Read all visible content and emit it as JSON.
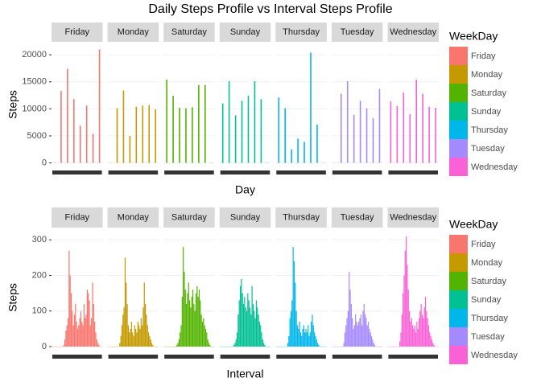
{
  "chart_data": [
    {
      "type": "bar",
      "title": "Daily Steps Profile vs Interval Steps Profile",
      "xlabel": "Day",
      "ylabel": "Steps",
      "legend_title": "WeekDay",
      "ylim": [
        -1100,
        22100
      ],
      "yticks": [
        0,
        5000,
        10000,
        15000,
        20000
      ],
      "grid": true,
      "series": [
        {
          "name": "Friday",
          "color": "#F8766D",
          "values": [
            0,
            13300,
            17400,
            11800,
            6900,
            10600,
            5400,
            21000
          ]
        },
        {
          "name": "Monday",
          "color": "#C49A00",
          "values": [
            0,
            10100,
            13400,
            5000,
            10400,
            10600,
            10700,
            9900
          ]
        },
        {
          "name": "Saturday",
          "color": "#53B400",
          "values": [
            15400,
            12400,
            10200,
            10100,
            10300,
            14400,
            14400,
            0
          ]
        },
        {
          "name": "Sunday",
          "color": "#00C094",
          "values": [
            11000,
            15100,
            8800,
            11500,
            12400,
            15100,
            11800,
            0
          ]
        },
        {
          "name": "Thursday",
          "color": "#00B6EB",
          "values": [
            12100,
            10100,
            2500,
            4500,
            3900,
            20400,
            7100,
            0
          ]
        },
        {
          "name": "Tuesday",
          "color": "#A58AFF",
          "values": [
            0,
            12800,
            15100,
            8900,
            11500,
            10100,
            8300,
            13700
          ]
        },
        {
          "name": "Wednesday",
          "color": "#FB61D7",
          "values": [
            11400,
            10500,
            13000,
            9000,
            15400,
            12800,
            10400,
            10200
          ]
        }
      ]
    },
    {
      "type": "bar",
      "xlabel": "Interval",
      "ylabel": "Steps",
      "legend_title": "WeekDay",
      "ylim": [
        -18,
        330
      ],
      "yticks": [
        0,
        100,
        200,
        300
      ],
      "grid": true,
      "series": [
        {
          "name": "Friday",
          "color": "#F8766D",
          "values": [
            0,
            0,
            0,
            0,
            0,
            0,
            0,
            0,
            0,
            0,
            0,
            5,
            20,
            45,
            60,
            80,
            270,
            200,
            150,
            100,
            60,
            90,
            120,
            70,
            50,
            60,
            80,
            100,
            70,
            60,
            120,
            80,
            90,
            160,
            150,
            130,
            60,
            80,
            180,
            120,
            70,
            40,
            20,
            10,
            5,
            0,
            0,
            0
          ]
        },
        {
          "name": "Monday",
          "color": "#C49A00",
          "values": [
            0,
            0,
            0,
            0,
            0,
            0,
            0,
            0,
            0,
            0,
            0,
            10,
            30,
            60,
            90,
            110,
            250,
            180,
            120,
            60,
            40,
            50,
            70,
            40,
            30,
            60,
            50,
            40,
            70,
            60,
            50,
            80,
            60,
            110,
            180,
            120,
            90,
            60,
            40,
            30,
            20,
            10,
            5,
            0,
            0,
            0,
            0,
            0
          ]
        },
        {
          "name": "Saturday",
          "color": "#53B400",
          "values": [
            0,
            0,
            0,
            0,
            0,
            0,
            0,
            0,
            0,
            0,
            0,
            0,
            5,
            10,
            20,
            40,
            60,
            140,
            280,
            210,
            160,
            120,
            150,
            180,
            130,
            110,
            140,
            160,
            120,
            100,
            150,
            170,
            140,
            160,
            130,
            90,
            70,
            80,
            60,
            50,
            40,
            20,
            10,
            5,
            0,
            0,
            0,
            0
          ]
        },
        {
          "name": "Sunday",
          "color": "#00C094",
          "values": [
            0,
            0,
            0,
            0,
            0,
            0,
            0,
            0,
            0,
            0,
            0,
            0,
            0,
            5,
            10,
            20,
            40,
            90,
            130,
            170,
            190,
            150,
            120,
            140,
            110,
            100,
            150,
            130,
            110,
            90,
            170,
            120,
            100,
            80,
            130,
            110,
            90,
            70,
            60,
            40,
            20,
            10,
            5,
            0,
            0,
            0,
            0,
            0
          ]
        },
        {
          "name": "Thursday",
          "color": "#00B6EB",
          "values": [
            0,
            0,
            0,
            0,
            0,
            0,
            0,
            0,
            0,
            0,
            0,
            10,
            30,
            80,
            100,
            130,
            280,
            240,
            180,
            100,
            60,
            50,
            70,
            40,
            30,
            50,
            60,
            40,
            50,
            40,
            60,
            30,
            40,
            70,
            90,
            60,
            40,
            30,
            20,
            10,
            5,
            0,
            0,
            0,
            0,
            0,
            0,
            0
          ]
        },
        {
          "name": "Tuesday",
          "color": "#A58AFF",
          "values": [
            0,
            0,
            0,
            0,
            0,
            0,
            0,
            0,
            0,
            0,
            0,
            10,
            40,
            60,
            80,
            100,
            210,
            160,
            120,
            80,
            50,
            60,
            90,
            70,
            60,
            70,
            80,
            90,
            60,
            100,
            120,
            90,
            80,
            60,
            70,
            50,
            40,
            30,
            20,
            10,
            5,
            0,
            0,
            0,
            0,
            0,
            0,
            0
          ]
        },
        {
          "name": "Wednesday",
          "color": "#FB61D7",
          "values": [
            0,
            0,
            0,
            0,
            0,
            0,
            0,
            0,
            0,
            0,
            0,
            15,
            40,
            90,
            150,
            200,
            270,
            310,
            230,
            160,
            100,
            70,
            80,
            60,
            50,
            60,
            40,
            70,
            50,
            80,
            100,
            120,
            90,
            80,
            110,
            140,
            100,
            80,
            60,
            40,
            30,
            20,
            10,
            5,
            0,
            0,
            0,
            0
          ]
        }
      ]
    }
  ]
}
